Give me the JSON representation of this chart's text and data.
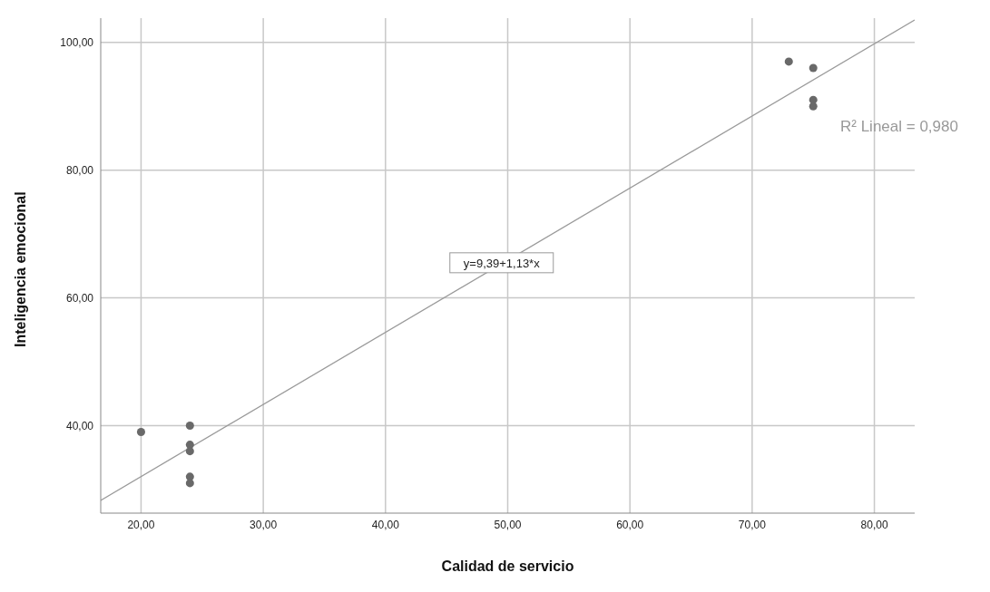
{
  "chart_data": {
    "type": "scatter",
    "xlabel": "Calidad de servicio",
    "ylabel": "Inteligencia emocional",
    "xlim": [
      16.7,
      83.3
    ],
    "ylim": [
      26.3,
      103.8
    ],
    "xticks": [
      {
        "value": 20,
        "label": "20,00"
      },
      {
        "value": 30,
        "label": "30,00"
      },
      {
        "value": 40,
        "label": "40,00"
      },
      {
        "value": 50,
        "label": "50,00"
      },
      {
        "value": 60,
        "label": "60,00"
      },
      {
        "value": 70,
        "label": "70,00"
      },
      {
        "value": 80,
        "label": "80,00"
      }
    ],
    "yticks": [
      {
        "value": 40,
        "label": "40,00"
      },
      {
        "value": 60,
        "label": "60,00"
      },
      {
        "value": 80,
        "label": "80,00"
      },
      {
        "value": 100,
        "label": "100,00"
      }
    ],
    "grid": true,
    "marker": "circle",
    "series": [
      {
        "color": "#696969",
        "x": [
          20,
          24,
          24,
          24,
          24,
          24,
          73,
          75,
          75,
          75
        ],
        "values": [
          39,
          40,
          37,
          36,
          32,
          31,
          97,
          96,
          91,
          90
        ]
      },
      {
        "type": "line",
        "color": "#9a9a9a",
        "line_style": "solid",
        "marker": "none",
        "x": [
          16.7,
          83.3
        ],
        "values": [
          28.3,
          103.5
        ]
      }
    ],
    "annotations": [
      {
        "text": "y=9,39+1,13*x",
        "x": 49.5,
        "y": 65.5
      },
      "R² Lineal = 0,980"
    ]
  }
}
